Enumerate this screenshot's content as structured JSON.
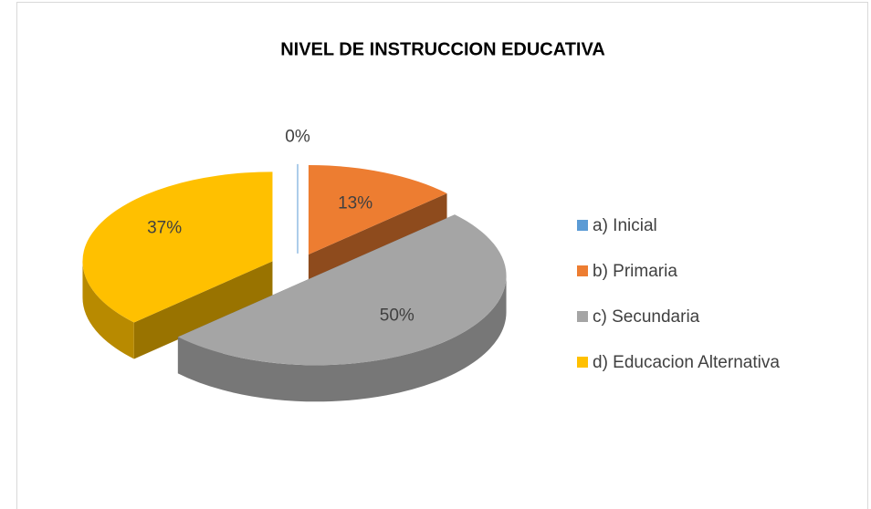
{
  "chart_data": {
    "type": "pie3d",
    "title": "NIVEL DE INSTRUCCION EDUCATIVA",
    "categories": [
      "a) Inicial",
      "b) Primaria",
      "c) Secundaria",
      "d) Educacion Alternativa"
    ],
    "values": [
      0,
      13,
      50,
      37
    ],
    "value_labels": [
      "0%",
      "13%",
      "50%",
      "37%"
    ],
    "colors": [
      "#5b9bd5",
      "#ed7d31",
      "#a5a5a5",
      "#ffc000"
    ],
    "legend": "right"
  }
}
